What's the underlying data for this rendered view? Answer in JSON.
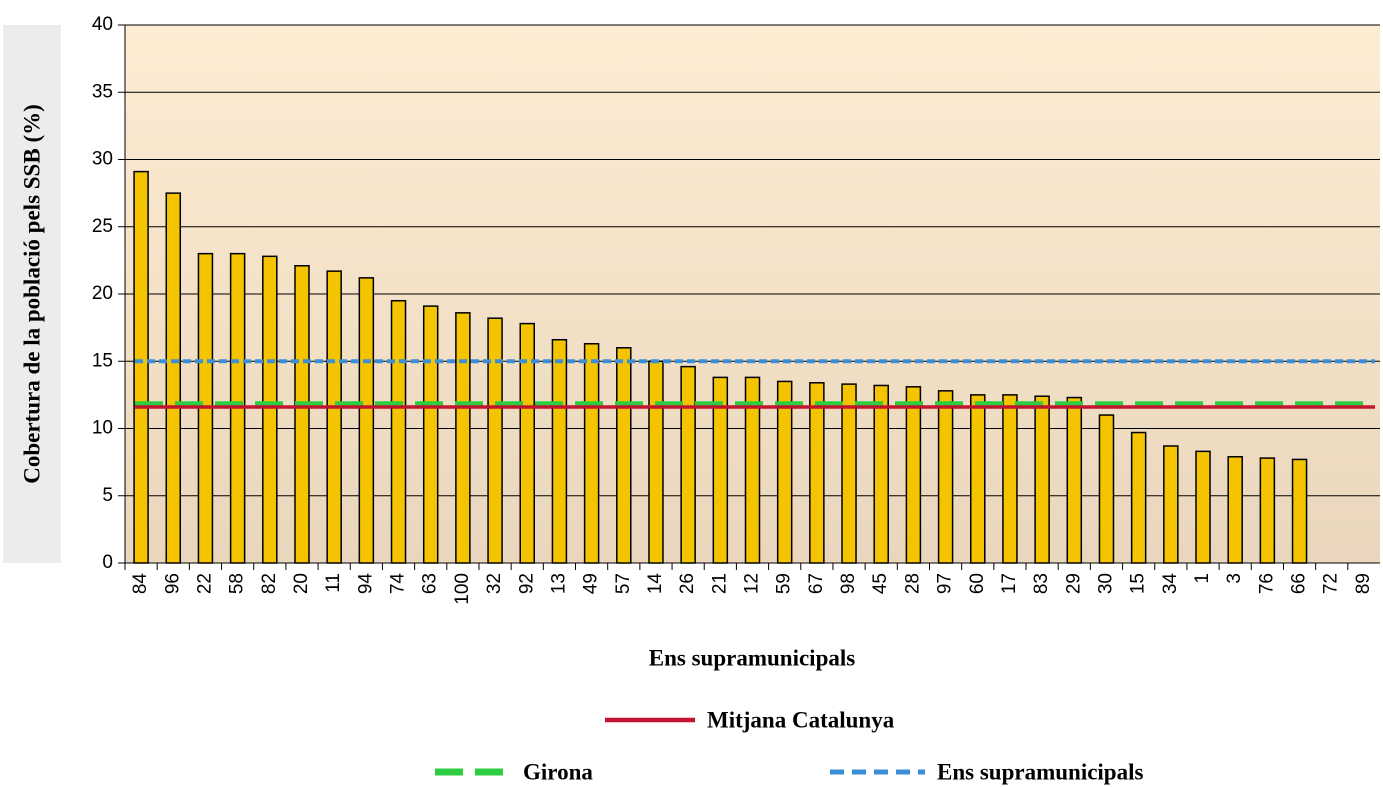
{
  "chart_data": {
    "type": "bar",
    "xlabel": "Ens supramunicipals",
    "ylabel": "Cobertura de la població pels SSB (%)",
    "categories": [
      "84",
      "96",
      "22",
      "58",
      "82",
      "20",
      "11",
      "94",
      "74",
      "63",
      "100",
      "32",
      "92",
      "13",
      "49",
      "57",
      "14",
      "26",
      "21",
      "12",
      "59",
      "67",
      "98",
      "45",
      "28",
      "97",
      "60",
      "17",
      "83",
      "29",
      "30",
      "15",
      "34",
      "1",
      "3",
      "76",
      "66",
      "72",
      "89"
    ],
    "values": [
      29.1,
      27.5,
      23.0,
      23.0,
      22.8,
      22.1,
      21.7,
      21.2,
      19.5,
      19.1,
      18.6,
      18.2,
      17.8,
      16.6,
      16.3,
      16.0,
      15.0,
      14.6,
      13.8,
      13.8,
      13.5,
      13.4,
      13.3,
      13.2,
      13.1,
      12.8,
      12.5,
      12.5,
      12.4,
      12.3,
      11.0,
      9.7,
      8.7,
      8.3,
      7.9,
      7.8,
      7.7,
      0,
      0
    ],
    "color": "#f5c400",
    "ylim": [
      0,
      40
    ],
    "yticks": [
      0,
      5,
      10,
      15,
      20,
      25,
      30,
      35,
      40
    ],
    "grid": true,
    "reference_lines": [
      {
        "name": "Mitjana Catalunya",
        "value": 11.6,
        "color": "#c0152f",
        "style": "solid"
      },
      {
        "name": "Girona",
        "value": 11.8,
        "color": "#2ecc40",
        "style": "dashed"
      },
      {
        "name": "Ens supramunicipals",
        "value": 15.0,
        "color": "#3a8fd8",
        "style": "dotted"
      }
    ]
  }
}
